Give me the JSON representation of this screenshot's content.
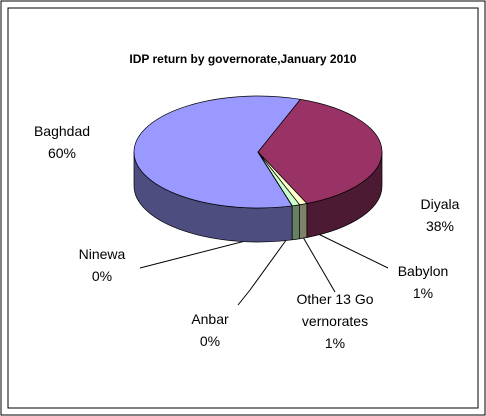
{
  "chart_data": {
    "type": "pie",
    "title": "IDP return by governorate,January 2010",
    "categories": [
      "Baghdad",
      "Diyala",
      "Babylon",
      "Other 13 Governorates",
      "Anbar",
      "Ninewa"
    ],
    "values": [
      60,
      38,
      1,
      1,
      0,
      0
    ],
    "value_labels": [
      "60%",
      "38%",
      "1%",
      "1%",
      "0%",
      "0%"
    ],
    "colors": [
      "#9999ff",
      "#993366",
      "#ffffcc",
      "#ccffcc",
      "#660066",
      "#ff8080"
    ]
  }
}
